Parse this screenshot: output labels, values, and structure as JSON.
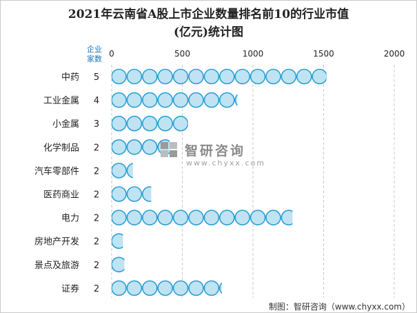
{
  "chart_data": {
    "type": "bar",
    "title_line1": "2021年云南省A股上市企业数量排名前10的行业市值",
    "title_line2": "(亿元)统计图",
    "count_header": [
      "企业",
      "家数"
    ],
    "categories": [
      "中药",
      "工业金属",
      "小金属",
      "化学制品",
      "汽车零部件",
      "医药商业",
      "电力",
      "房地产开发",
      "景点及旅游",
      "证券"
    ],
    "company_counts": [
      5,
      4,
      3,
      2,
      2,
      2,
      2,
      2,
      2,
      2
    ],
    "values": [
      1520,
      890,
      540,
      410,
      150,
      280,
      1280,
      80,
      90,
      780
    ],
    "xticks": [
      "0",
      "500",
      "1000",
      "1500",
      "2000"
    ],
    "xlim": [
      0,
      2000
    ],
    "grid": "vertical dashed",
    "bar_style": "pictorial circles",
    "colors": {
      "circle_fill": "#bfe3f2",
      "circle_stroke": "#2b9fd4",
      "grid": "#c8c8c8",
      "text": "#222222"
    }
  },
  "watermark": {
    "text": "智研咨询",
    "url": "www.chyxx.com"
  },
  "footer": "制图：智研咨询（www.chyxx.com）"
}
